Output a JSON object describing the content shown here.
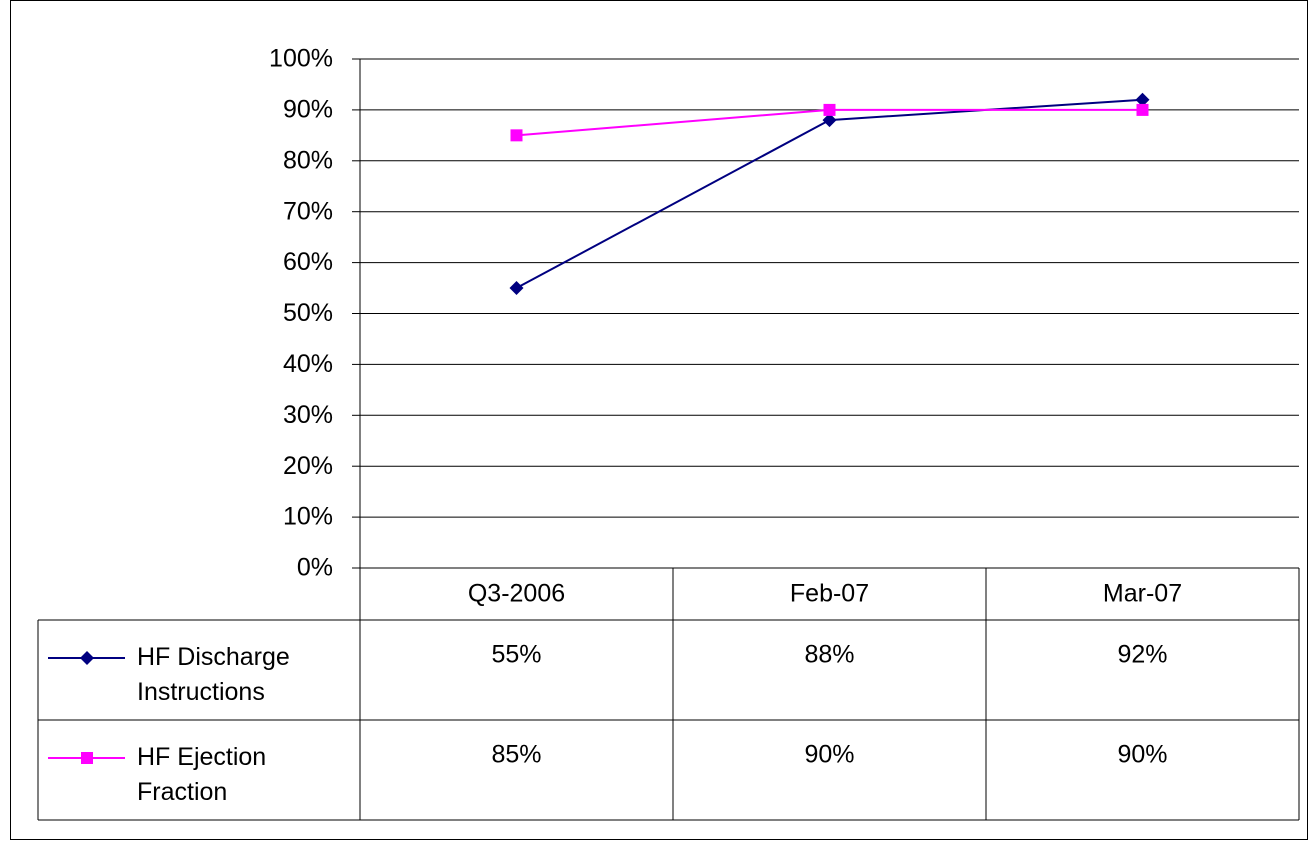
{
  "chart_data": {
    "type": "line",
    "categories": [
      "Q3-2006",
      "Feb-07",
      "Mar-07"
    ],
    "series": [
      {
        "name": "HF Discharge Instructions",
        "color": "#000080",
        "marker": "diamond",
        "values": [
          55,
          88,
          92
        ],
        "value_labels": [
          "55%",
          "88%",
          "92%"
        ]
      },
      {
        "name": "HF Ejection Fraction",
        "color": "#ff00ff",
        "marker": "square",
        "values": [
          85,
          90,
          90
        ],
        "value_labels": [
          "85%",
          "90%",
          "90%"
        ]
      }
    ],
    "ylim": [
      0,
      100
    ],
    "yticks": [
      {
        "value": 0,
        "label": "0%"
      },
      {
        "value": 10,
        "label": "10%"
      },
      {
        "value": 20,
        "label": "20%"
      },
      {
        "value": 30,
        "label": "30%"
      },
      {
        "value": 40,
        "label": "40%"
      },
      {
        "value": 50,
        "label": "50%"
      },
      {
        "value": 60,
        "label": "60%"
      },
      {
        "value": 70,
        "label": "70%"
      },
      {
        "value": 80,
        "label": "80%"
      },
      {
        "value": 90,
        "label": "90%"
      },
      {
        "value": 100,
        "label": "100%"
      }
    ],
    "grid": true,
    "data_table": true
  }
}
